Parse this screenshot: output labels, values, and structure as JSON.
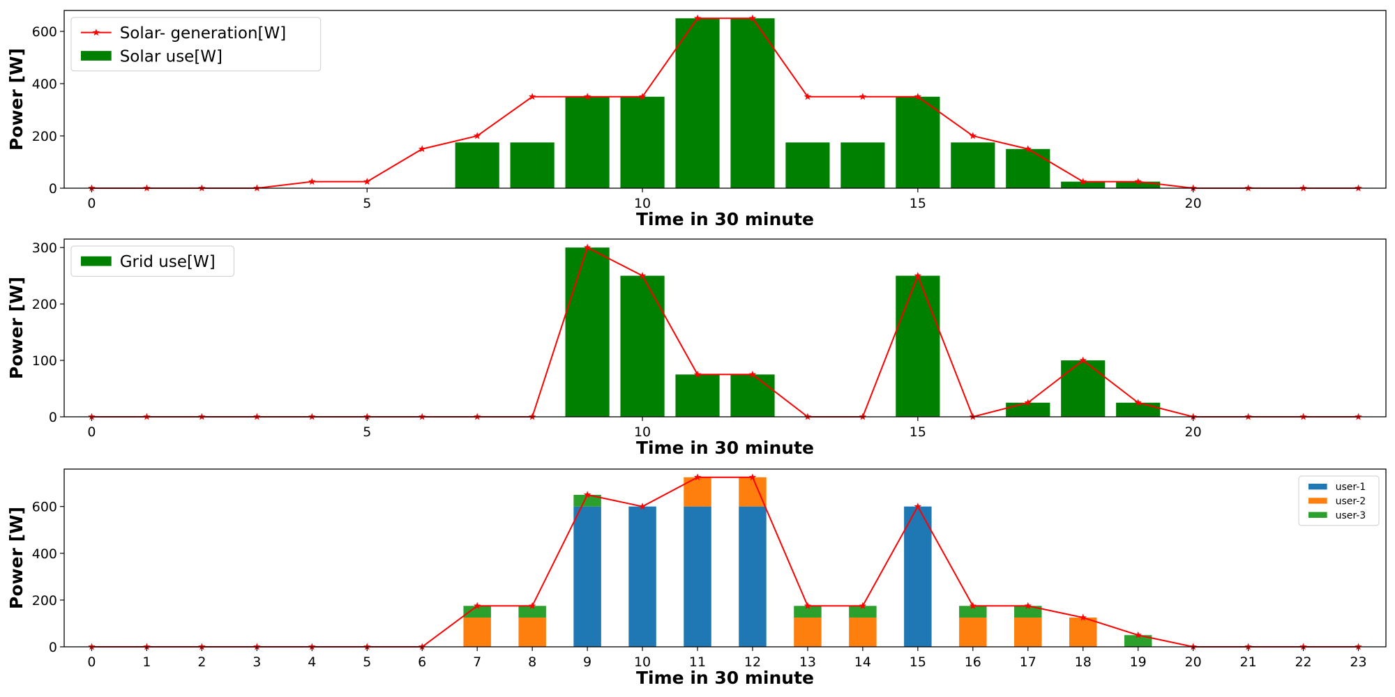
{
  "chart_data": [
    {
      "type": "bar",
      "x": [
        0,
        1,
        2,
        3,
        4,
        5,
        6,
        7,
        8,
        9,
        10,
        11,
        12,
        13,
        14,
        15,
        16,
        17,
        18,
        19,
        20,
        21,
        22,
        23
      ],
      "xticks": [
        0,
        5,
        10,
        15,
        20
      ],
      "xlabel": "Time in 30 minute",
      "ylabel": "Power [W]",
      "ylim": [
        0,
        680
      ],
      "yticks": [
        0,
        200,
        400,
        600
      ],
      "legend_position": "upper-left",
      "bar_series": [
        {
          "name": "Solar use[W]",
          "color": "#008000",
          "values": [
            0,
            0,
            0,
            0,
            0,
            0,
            0,
            175,
            175,
            350,
            350,
            650,
            650,
            175,
            175,
            350,
            175,
            150,
            25,
            25,
            0,
            0,
            0,
            0
          ]
        }
      ],
      "line_series": [
        {
          "name": "Solar- generation[W]",
          "color": "#ff0000",
          "marker": "star",
          "values": [
            0,
            0,
            0,
            0,
            25,
            25,
            150,
            200,
            350,
            350,
            350,
            650,
            650,
            350,
            350,
            350,
            200,
            150,
            25,
            25,
            0,
            0,
            0,
            0
          ]
        }
      ]
    },
    {
      "type": "bar",
      "x": [
        0,
        1,
        2,
        3,
        4,
        5,
        6,
        7,
        8,
        9,
        10,
        11,
        12,
        13,
        14,
        15,
        16,
        17,
        18,
        19,
        20,
        21,
        22,
        23
      ],
      "xticks": [
        0,
        5,
        10,
        15,
        20
      ],
      "xlabel": "Time in 30 minute",
      "ylabel": "Power [W]",
      "ylim": [
        0,
        315
      ],
      "yticks": [
        0,
        100,
        200,
        300
      ],
      "legend_position": "upper-left",
      "bar_series": [
        {
          "name": "Grid use[W]",
          "color": "#008000",
          "values": [
            0,
            0,
            0,
            0,
            0,
            0,
            0,
            0,
            0,
            300,
            250,
            75,
            75,
            0,
            0,
            250,
            0,
            25,
            100,
            25,
            0,
            0,
            0,
            0
          ]
        }
      ],
      "line_series": [
        {
          "name": "",
          "color": "#ff0000",
          "marker": "star",
          "values": [
            0,
            0,
            0,
            0,
            0,
            0,
            0,
            0,
            0,
            300,
            250,
            75,
            75,
            0,
            0,
            250,
            0,
            25,
            100,
            25,
            0,
            0,
            0,
            0
          ]
        }
      ]
    },
    {
      "type": "bar",
      "stacked": true,
      "x": [
        0,
        1,
        2,
        3,
        4,
        5,
        6,
        7,
        8,
        9,
        10,
        11,
        12,
        13,
        14,
        15,
        16,
        17,
        18,
        19,
        20,
        21,
        22,
        23
      ],
      "xticks": [
        0,
        1,
        2,
        3,
        4,
        5,
        6,
        7,
        8,
        9,
        10,
        11,
        12,
        13,
        14,
        15,
        16,
        17,
        18,
        19,
        20,
        21,
        22,
        23
      ],
      "xlabel": "Time in 30 minute",
      "ylabel": "Power [W]",
      "ylim": [
        0,
        760
      ],
      "yticks": [
        0,
        200,
        400,
        600
      ],
      "legend_position": "upper-right",
      "bar_series": [
        {
          "name": "user-1",
          "color": "#1f77b4",
          "values": [
            0,
            0,
            0,
            0,
            0,
            0,
            0,
            0,
            0,
            600,
            600,
            600,
            600,
            0,
            0,
            600,
            0,
            0,
            0,
            0,
            0,
            0,
            0,
            0
          ]
        },
        {
          "name": "user-2",
          "color": "#ff7f0e",
          "values": [
            0,
            0,
            0,
            0,
            0,
            0,
            0,
            125,
            125,
            0,
            0,
            125,
            125,
            125,
            125,
            0,
            125,
            125,
            125,
            0,
            0,
            0,
            0,
            0
          ]
        },
        {
          "name": "user-3",
          "color": "#2ca02c",
          "values": [
            0,
            0,
            0,
            0,
            0,
            0,
            0,
            50,
            50,
            50,
            0,
            0,
            0,
            50,
            50,
            0,
            50,
            50,
            0,
            50,
            0,
            0,
            0,
            0
          ]
        }
      ],
      "line_series": [
        {
          "name": "",
          "color": "#ff0000",
          "marker": "star",
          "values": [
            0,
            0,
            0,
            0,
            0,
            0,
            0,
            175,
            175,
            650,
            600,
            725,
            725,
            175,
            175,
            600,
            175,
            175,
            125,
            50,
            0,
            0,
            0,
            0
          ]
        }
      ]
    }
  ]
}
